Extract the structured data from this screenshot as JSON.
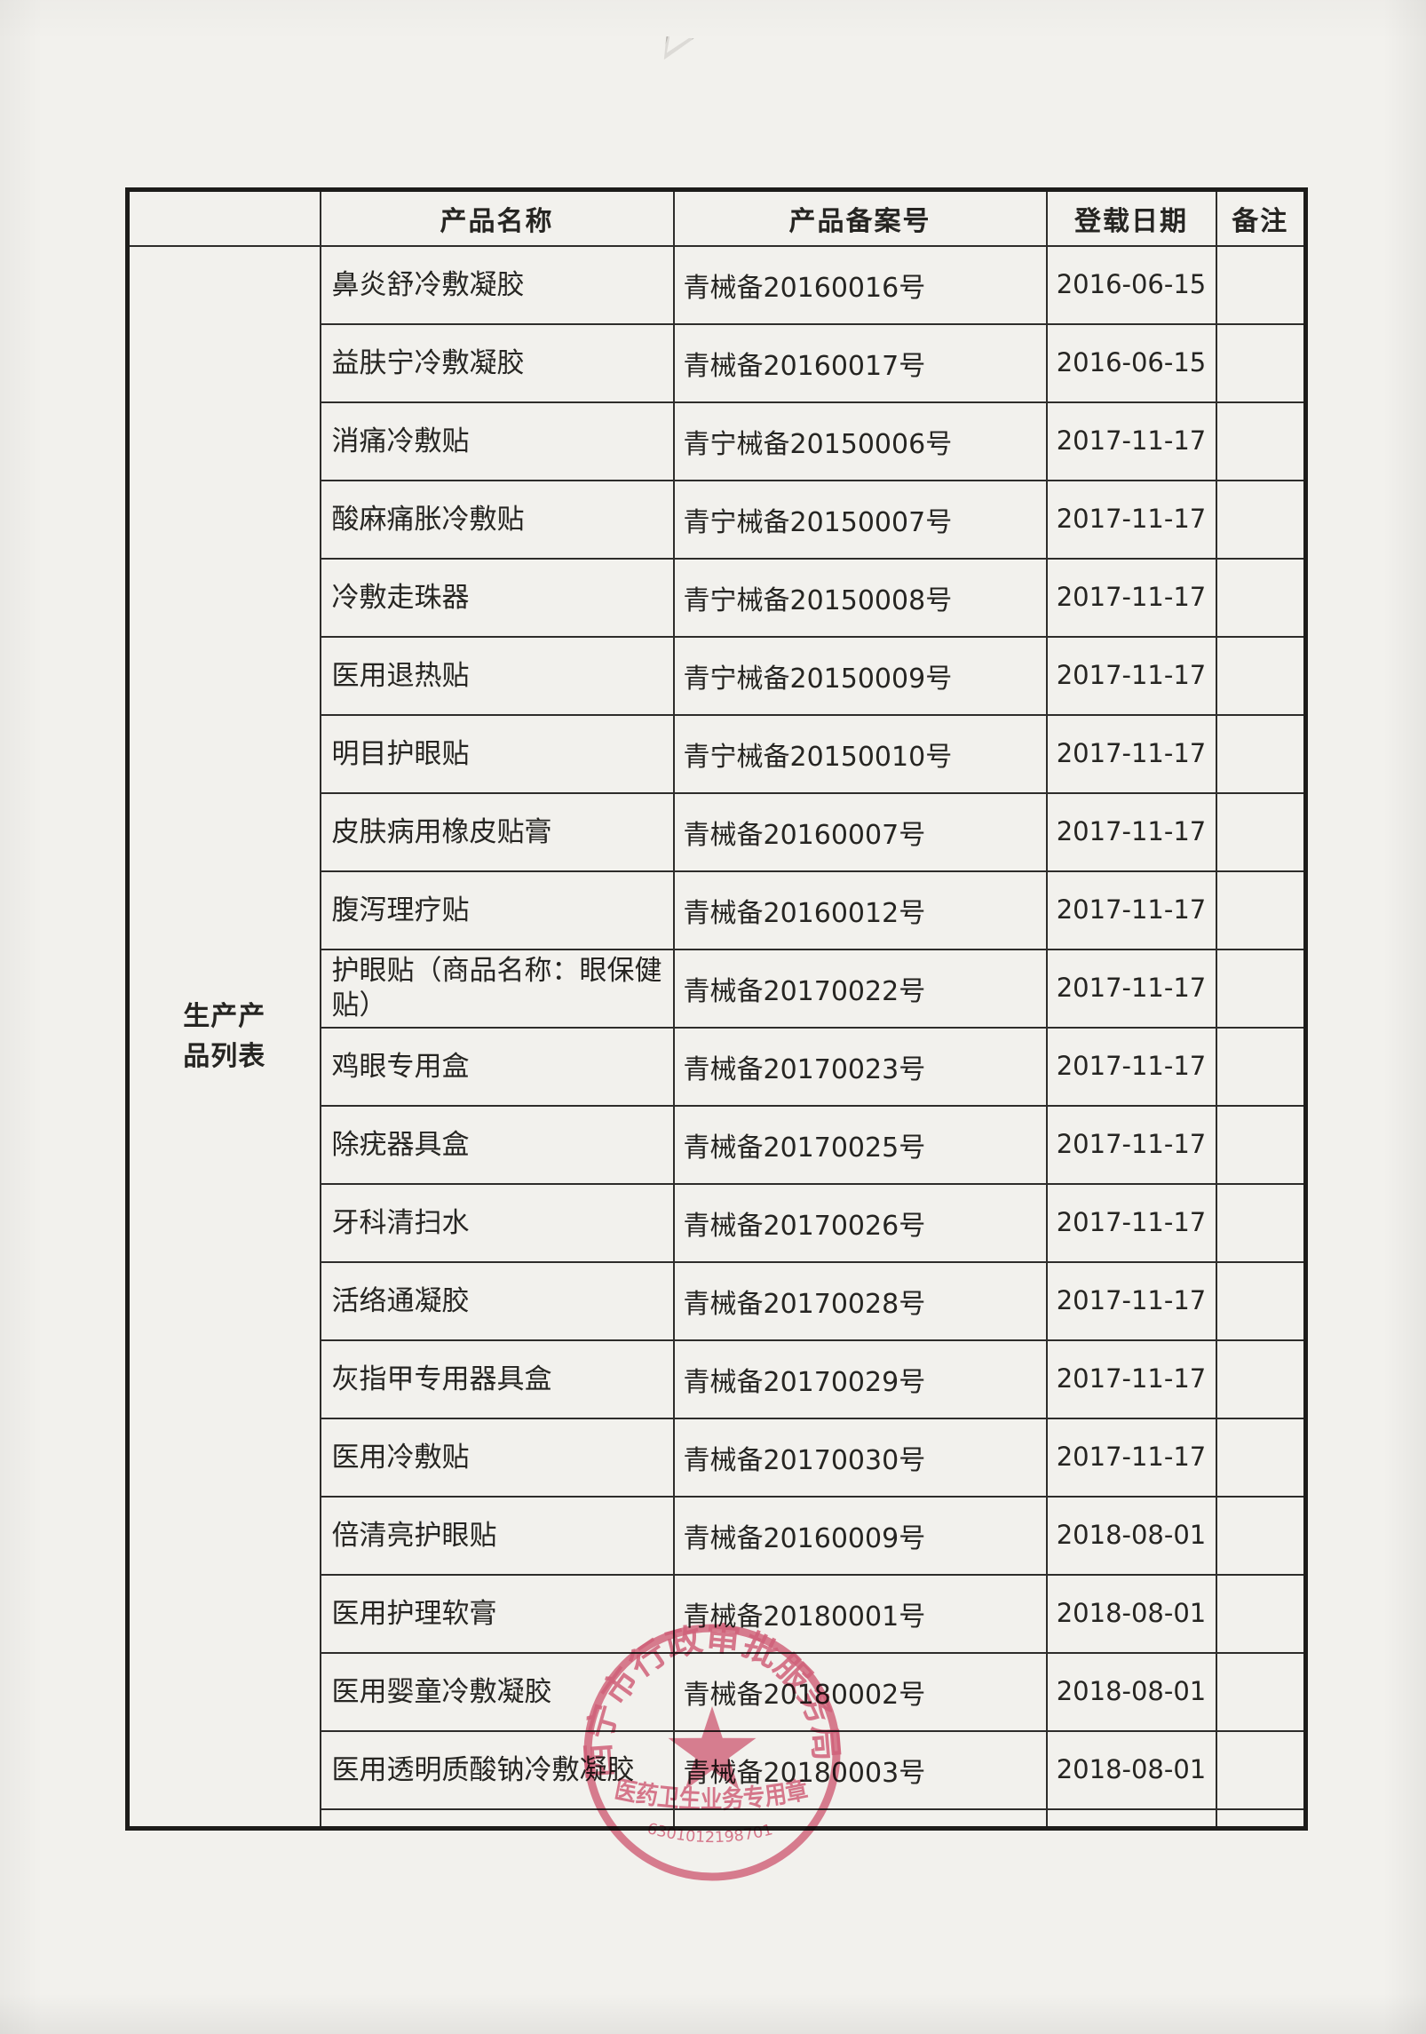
{
  "table": {
    "row_group_label": "生产产品列表",
    "headers": {
      "name": "产品名称",
      "reg": "产品备案号",
      "date": "登载日期",
      "note": "备注"
    },
    "rows": [
      {
        "name": "鼻炎舒冷敷凝胶",
        "reg": "青械备20160016号",
        "date": "2016-06-15",
        "note": ""
      },
      {
        "name": "益肤宁冷敷凝胶",
        "reg": "青械备20160017号",
        "date": "2016-06-15",
        "note": ""
      },
      {
        "name": "消痛冷敷贴",
        "reg": "青宁械备20150006号",
        "date": "2017-11-17",
        "note": ""
      },
      {
        "name": "酸麻痛胀冷敷贴",
        "reg": "青宁械备20150007号",
        "date": "2017-11-17",
        "note": ""
      },
      {
        "name": "冷敷走珠器",
        "reg": "青宁械备20150008号",
        "date": "2017-11-17",
        "note": ""
      },
      {
        "name": "医用退热贴",
        "reg": "青宁械备20150009号",
        "date": "2017-11-17",
        "note": ""
      },
      {
        "name": "明目护眼贴",
        "reg": "青宁械备20150010号",
        "date": "2017-11-17",
        "note": ""
      },
      {
        "name": "皮肤病用橡皮贴膏",
        "reg": "青械备20160007号",
        "date": "2017-11-17",
        "note": ""
      },
      {
        "name": "腹泻理疗贴",
        "reg": "青械备20160012号",
        "date": "2017-11-17",
        "note": ""
      },
      {
        "name": "护眼贴（商品名称：眼保健贴）",
        "reg": "青械备20170022号",
        "date": "2017-11-17",
        "note": ""
      },
      {
        "name": "鸡眼专用盒",
        "reg": "青械备20170023号",
        "date": "2017-11-17",
        "note": ""
      },
      {
        "name": "除疣器具盒",
        "reg": "青械备20170025号",
        "date": "2017-11-17",
        "note": ""
      },
      {
        "name": "牙科清扫水",
        "reg": "青械备20170026号",
        "date": "2017-11-17",
        "note": ""
      },
      {
        "name": "活络通凝胶",
        "reg": "青械备20170028号",
        "date": "2017-11-17",
        "note": ""
      },
      {
        "name": "灰指甲专用器具盒",
        "reg": "青械备20170029号",
        "date": "2017-11-17",
        "note": ""
      },
      {
        "name": "医用冷敷贴",
        "reg": "青械备20170030号",
        "date": "2017-11-17",
        "note": ""
      },
      {
        "name": "倍清亮护眼贴",
        "reg": "青械备20160009号",
        "date": "2018-08-01",
        "note": ""
      },
      {
        "name": "医用护理软膏",
        "reg": "青械备20180001号",
        "date": "2018-08-01",
        "note": ""
      },
      {
        "name": "医用婴童冷敷凝胶",
        "reg": "青械备20180002号",
        "date": "2018-08-01",
        "note": ""
      },
      {
        "name": "医用透明质酸钠冷敷凝胶",
        "reg": "青械备20180003号",
        "date": "2018-08-01",
        "note": ""
      }
    ]
  },
  "stamp": {
    "arc_text": "西宁市行政审批服务局",
    "inner_text": "医药卫生业务专用章",
    "serial": "6301012198701",
    "color": "#d6506f"
  }
}
